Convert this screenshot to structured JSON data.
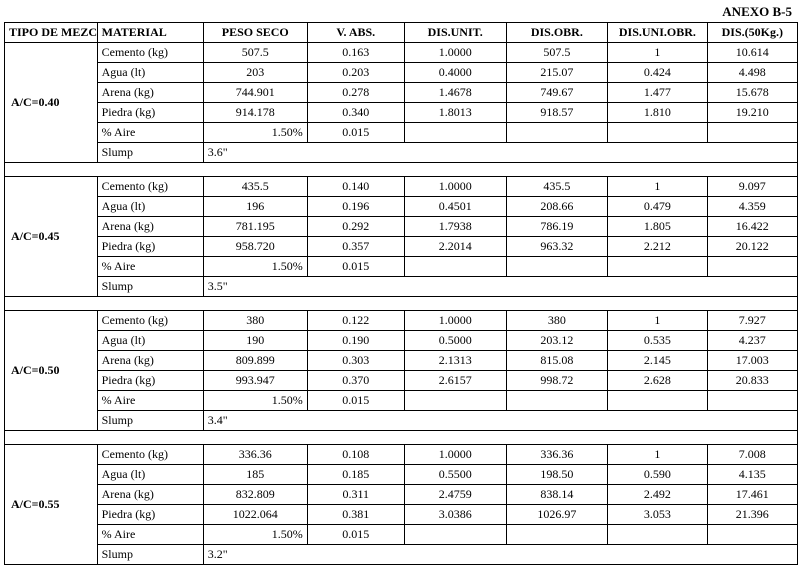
{
  "anexo_label": "ANEXO B-5",
  "headers": {
    "tipo": "TIPO DE MEZCLA",
    "material": "MATERIAL",
    "peso_seco": "PESO SECO",
    "v_abs": "V. ABS.",
    "dis_unit": "DIS.UNIT.",
    "dis_obr": "DIS.OBR.",
    "dis_uni_obr": "DIS.UNI.OBR.",
    "dis_50kg": "DIS.(50Kg.)"
  },
  "materials": {
    "cemento": "Cemento (kg)",
    "agua": "Agua (lt)",
    "arena": "Arena (kg)",
    "piedra": "Piedra (kg)",
    "aire": "% Aire",
    "slump": "Slump"
  },
  "groups": [
    {
      "tipo": "A/C=0.40",
      "slump": "3.6\"",
      "rows": {
        "cemento": {
          "ps": "507.5",
          "va": "0.163",
          "du": "1.0000",
          "do": "507.5",
          "duo": "1",
          "d50": "10.614"
        },
        "agua": {
          "ps": "203",
          "va": "0.203",
          "du": "0.4000",
          "do": "215.07",
          "duo": "0.424",
          "d50": "4.498"
        },
        "arena": {
          "ps": "744.901",
          "va": "0.278",
          "du": "1.4678",
          "do": "749.67",
          "duo": "1.477",
          "d50": "15.678"
        },
        "piedra": {
          "ps": "914.178",
          "va": "0.340",
          "du": "1.8013",
          "do": "918.57",
          "duo": "1.810",
          "d50": "19.210"
        },
        "aire": {
          "ps": "1.50%",
          "va": "0.015",
          "du": "",
          "do": "",
          "duo": "",
          "d50": ""
        }
      }
    },
    {
      "tipo": "A/C=0.45",
      "slump": "3.5\"",
      "rows": {
        "cemento": {
          "ps": "435.5",
          "va": "0.140",
          "du": "1.0000",
          "do": "435.5",
          "duo": "1",
          "d50": "9.097"
        },
        "agua": {
          "ps": "196",
          "va": "0.196",
          "du": "0.4501",
          "do": "208.66",
          "duo": "0.479",
          "d50": "4.359"
        },
        "arena": {
          "ps": "781.195",
          "va": "0.292",
          "du": "1.7938",
          "do": "786.19",
          "duo": "1.805",
          "d50": "16.422"
        },
        "piedra": {
          "ps": "958.720",
          "va": "0.357",
          "du": "2.2014",
          "do": "963.32",
          "duo": "2.212",
          "d50": "20.122"
        },
        "aire": {
          "ps": "1.50%",
          "va": "0.015",
          "du": "",
          "do": "",
          "duo": "",
          "d50": ""
        }
      }
    },
    {
      "tipo": "A/C=0.50",
      "slump": "3.4\"",
      "rows": {
        "cemento": {
          "ps": "380",
          "va": "0.122",
          "du": "1.0000",
          "do": "380",
          "duo": "1",
          "d50": "7.927"
        },
        "agua": {
          "ps": "190",
          "va": "0.190",
          "du": "0.5000",
          "do": "203.12",
          "duo": "0.535",
          "d50": "4.237"
        },
        "arena": {
          "ps": "809.899",
          "va": "0.303",
          "du": "2.1313",
          "do": "815.08",
          "duo": "2.145",
          "d50": "17.003"
        },
        "piedra": {
          "ps": "993.947",
          "va": "0.370",
          "du": "2.6157",
          "do": "998.72",
          "duo": "2.628",
          "d50": "20.833"
        },
        "aire": {
          "ps": "1.50%",
          "va": "0.015",
          "du": "",
          "do": "",
          "duo": "",
          "d50": ""
        }
      }
    },
    {
      "tipo": "A/C=0.55",
      "slump": "3.2\"",
      "rows": {
        "cemento": {
          "ps": "336.36",
          "va": "0.108",
          "du": "1.0000",
          "do": "336.36",
          "duo": "1",
          "d50": "7.008"
        },
        "agua": {
          "ps": "185",
          "va": "0.185",
          "du": "0.5500",
          "do": "198.50",
          "duo": "0.590",
          "d50": "4.135"
        },
        "arena": {
          "ps": "832.809",
          "va": "0.311",
          "du": "2.4759",
          "do": "838.14",
          "duo": "2.492",
          "d50": "17.461"
        },
        "piedra": {
          "ps": "1022.064",
          "va": "0.381",
          "du": "3.0386",
          "do": "1026.97",
          "duo": "3.053",
          "d50": "21.396"
        },
        "aire": {
          "ps": "1.50%",
          "va": "0.015",
          "du": "",
          "do": "",
          "duo": "",
          "d50": ""
        }
      }
    }
  ]
}
